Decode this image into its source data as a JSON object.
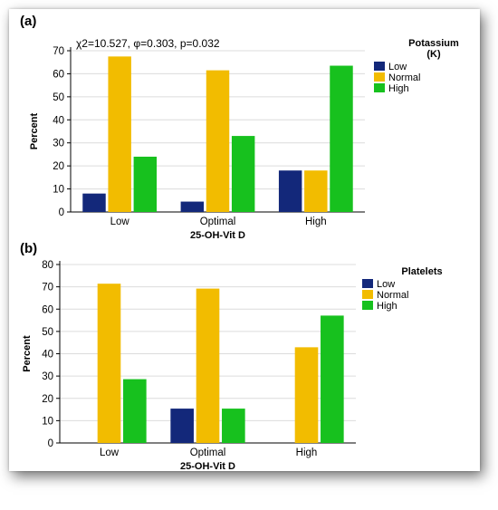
{
  "colors": {
    "Low": "#13287a",
    "Normal": "#f2bc00",
    "High": "#17c11e"
  },
  "chart_data": [
    {
      "type": "bar",
      "panel_label": "(a)",
      "annotation": "χ2=10.527, φ=0.303, p=0.032",
      "xlabel": "25-OH-Vit D",
      "ylabel": "Percent",
      "ylim": [
        0,
        70
      ],
      "yticks": [
        0,
        10,
        20,
        30,
        40,
        50,
        60,
        70
      ],
      "grid": "horizontal",
      "categories": [
        "Low",
        "Optimal",
        "High"
      ],
      "legend": {
        "title_line1": "Potassium",
        "title_line2": "(K)",
        "placement": "right"
      },
      "series": [
        {
          "name": "Low",
          "values": [
            8,
            4.5,
            18
          ]
        },
        {
          "name": "Normal",
          "values": [
            67.5,
            61.5,
            18
          ]
        },
        {
          "name": "High",
          "values": [
            24,
            33,
            63.5
          ]
        }
      ]
    },
    {
      "type": "bar",
      "panel_label": "(b)",
      "xlabel": "25-OH-Vit D",
      "ylabel": "Percent",
      "ylim": [
        0,
        80
      ],
      "yticks": [
        0,
        10,
        20,
        30,
        40,
        50,
        60,
        70,
        80
      ],
      "grid": "horizontal",
      "categories": [
        "Low",
        "Optimal",
        "High"
      ],
      "legend": {
        "title_line1": "Platelets",
        "placement": "right"
      },
      "series": [
        {
          "name": "Low",
          "values": [
            0,
            15.4,
            0
          ]
        },
        {
          "name": "Normal",
          "values": [
            71.4,
            69.2,
            42.9
          ]
        },
        {
          "name": "High",
          "values": [
            28.6,
            15.4,
            57.1
          ]
        }
      ]
    }
  ]
}
